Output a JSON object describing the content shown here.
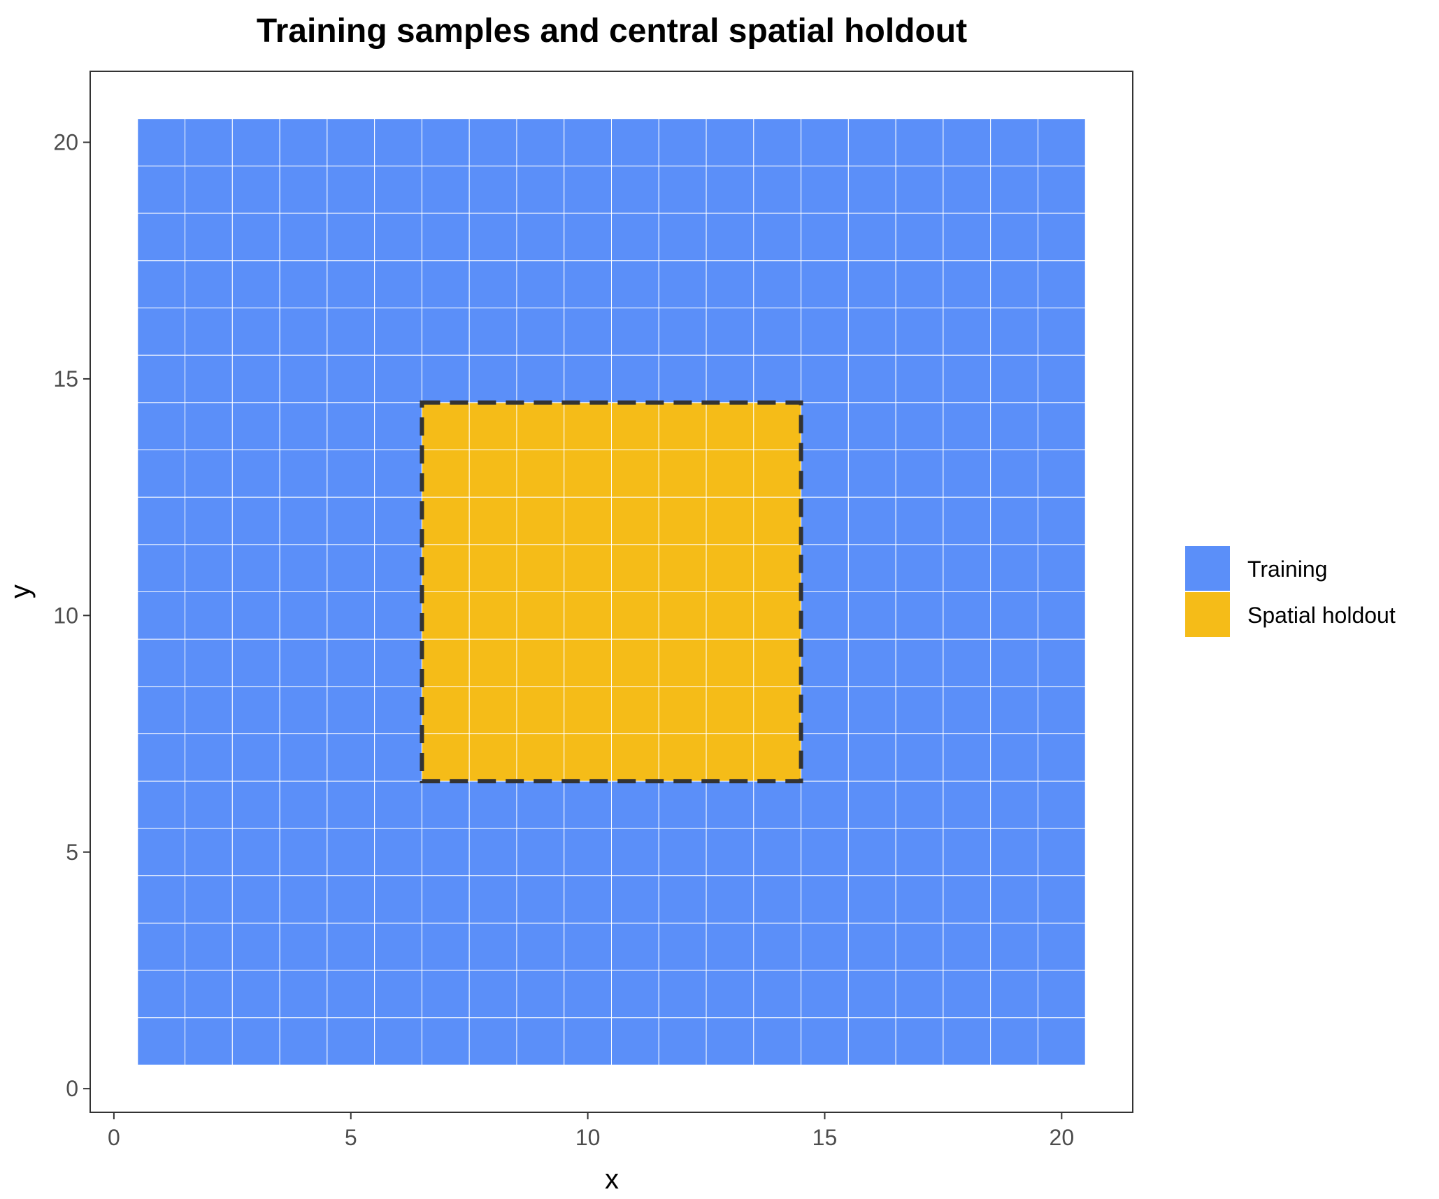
{
  "chart_data": {
    "type": "heatmap",
    "title": "Training samples and central spatial holdout",
    "xlabel": "x",
    "ylabel": "y",
    "xlim": [
      -0.5,
      21.5
    ],
    "ylim": [
      -0.5,
      21.5
    ],
    "x_ticks": [
      0,
      5,
      10,
      15,
      20
    ],
    "y_ticks": [
      0,
      5,
      10,
      15,
      20
    ],
    "grid": false,
    "tile_x_range": [
      1,
      20
    ],
    "tile_y_range": [
      1,
      20
    ],
    "tile_size": 1,
    "categories": [
      "Training",
      "Spatial holdout"
    ],
    "colors": {
      "Training": "#5b8ff9",
      "Spatial holdout": "#f5bc18",
      "tile_border": "#ffffff",
      "holdout_outline": "#333333"
    },
    "holdout_region": {
      "x_range": [
        7,
        14
      ],
      "y_range": [
        7,
        14
      ]
    },
    "legend": {
      "position": "right",
      "entries": [
        {
          "label": "Training",
          "color": "#5b8ff9"
        },
        {
          "label": "Spatial holdout",
          "color": "#f5bc18"
        }
      ]
    }
  }
}
